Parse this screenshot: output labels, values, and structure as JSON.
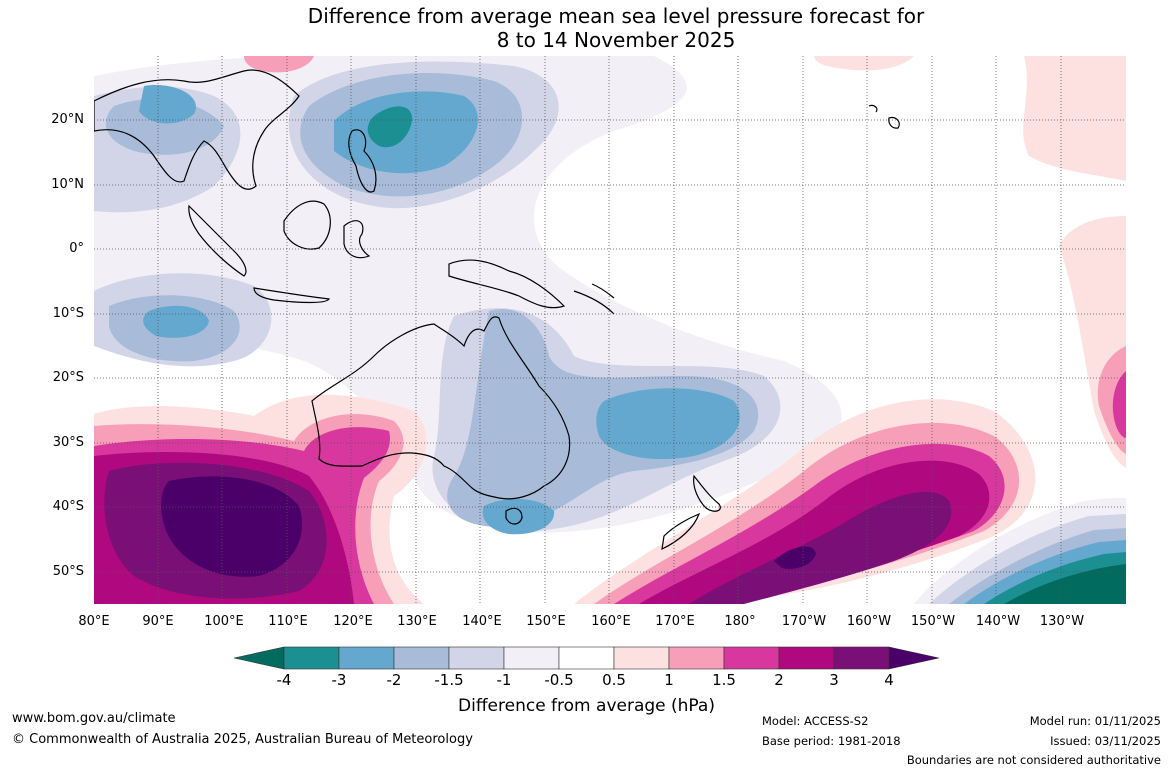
{
  "title": {
    "line1": "Difference from average mean sea level pressure forecast for",
    "line2": "8 to 14 November 2025"
  },
  "map": {
    "lat_labels": [
      "20°N",
      "10°N",
      "0°",
      "10°S",
      "20°S",
      "30°S",
      "40°S",
      "50°S"
    ],
    "lon_labels": [
      "80°E",
      "90°E",
      "100°E",
      "110°E",
      "120°E",
      "130°E",
      "140°E",
      "150°E",
      "160°E",
      "170°E",
      "180°",
      "170°W",
      "160°W",
      "150°W",
      "140°W",
      "130°W"
    ],
    "gridlines": "dotted"
  },
  "legend": {
    "tick_labels": [
      "-4",
      "-3",
      "-2",
      "-1.5",
      "-1",
      "-0.5",
      "0.5",
      "1",
      "1.5",
      "2",
      "3",
      "4"
    ],
    "label": "Difference from average (hPa)",
    "colors": {
      "below_-4": "#006b5e",
      "-4_to_-3": "#1b8f92",
      "-3_to_-2": "#64a8cf",
      "-2_to_-1.5": "#a8bcd9",
      "-1.5_to_-1": "#d2d5e8",
      "-1_to_-0.5": "#f3eff6",
      "-0.5_to_0.5": "#ffffff",
      "0.5_to_1": "#fde1e1",
      "1_to_1.5": "#f79fb9",
      "1.5_to_2": "#d8389d",
      "2_to_3": "#b0087f",
      "3_to_4": "#7b0f78",
      "above_4": "#4a0068"
    }
  },
  "footer": {
    "website": "www.bom.gov.au/climate",
    "copyright": "© Commonwealth of Australia 2025, Australian Bureau of Meteorology",
    "model": "Model: ACCESS-S2",
    "base_period": "Base period: 1981-2018",
    "model_run": "Model run: 01/11/2025",
    "issued": "Issued: 03/11/2025",
    "disclaimer": "Boundaries are not considered authoritative"
  }
}
